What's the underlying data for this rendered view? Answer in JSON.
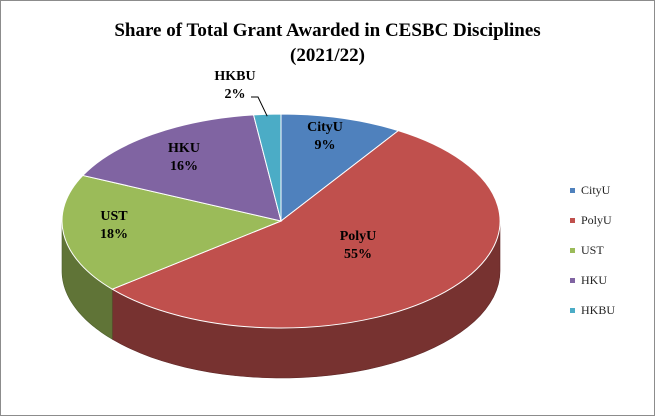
{
  "chart_data": {
    "type": "pie",
    "title": "Share of Total Grant Awarded  in  CESBC Disciplines",
    "subtitle": "(2021/22)",
    "legend_position": "right",
    "slices": [
      {
        "name": "CityU",
        "value": 9,
        "label": "9%",
        "color": "#4F81BD"
      },
      {
        "name": "PolyU",
        "value": 55,
        "label": "55%",
        "color": "#C0504D"
      },
      {
        "name": "UST",
        "value": 18,
        "label": "18%",
        "color": "#9BBB59"
      },
      {
        "name": "HKU",
        "value": 16,
        "label": "16%",
        "color": "#8064A2"
      },
      {
        "name": "HKBU",
        "value": 2,
        "label": "2%",
        "color": "#4BACC6"
      }
    ]
  }
}
